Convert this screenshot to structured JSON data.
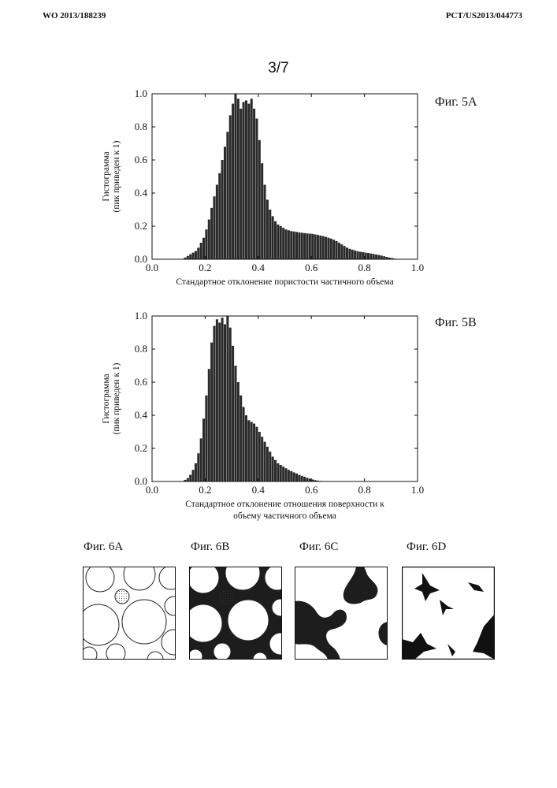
{
  "header": {
    "left": "WO 2013/188239",
    "right": "PCT/US2013/044773"
  },
  "page_number": "3/7",
  "colors": {
    "bar": "#2a2a2a",
    "axis": "#111111",
    "background": "#ffffff"
  },
  "chart_data": [
    {
      "id": "fig5a",
      "type": "bar",
      "title": "Фиг. 5A",
      "xlabel": "Стандартное отклонение пористости частичного объема",
      "xlabel_lines": [
        "Стандартное отклонение пористости частичного объема"
      ],
      "ylabel_lines": [
        "Гистограмма",
        "(пик приведен к 1)"
      ],
      "xlim": [
        0,
        1
      ],
      "ylim": [
        0,
        1
      ],
      "xticks": [
        "0.0",
        "0.2",
        "0.4",
        "0.6",
        "0.8",
        "1.0"
      ],
      "yticks": [
        "0.0",
        "0.2",
        "0.4",
        "0.6",
        "0.8",
        "1.0"
      ],
      "bin_width": 0.01,
      "x": [
        0.005,
        0.015,
        0.025,
        0.035,
        0.045,
        0.055,
        0.065,
        0.075,
        0.085,
        0.095,
        0.105,
        0.115,
        0.125,
        0.135,
        0.145,
        0.155,
        0.165,
        0.175,
        0.185,
        0.195,
        0.205,
        0.215,
        0.225,
        0.235,
        0.245,
        0.255,
        0.265,
        0.275,
        0.285,
        0.295,
        0.305,
        0.315,
        0.325,
        0.335,
        0.345,
        0.355,
        0.365,
        0.375,
        0.385,
        0.395,
        0.405,
        0.415,
        0.425,
        0.435,
        0.445,
        0.455,
        0.465,
        0.475,
        0.485,
        0.495,
        0.505,
        0.515,
        0.525,
        0.535,
        0.545,
        0.555,
        0.565,
        0.575,
        0.585,
        0.595,
        0.605,
        0.615,
        0.625,
        0.635,
        0.645,
        0.655,
        0.665,
        0.675,
        0.685,
        0.695,
        0.705,
        0.715,
        0.725,
        0.735,
        0.745,
        0.755,
        0.765,
        0.775,
        0.785,
        0.795,
        0.805,
        0.815,
        0.825,
        0.835,
        0.845,
        0.855,
        0.865,
        0.875,
        0.885,
        0.895,
        0.905,
        0.915,
        0.925,
        0.935,
        0.945,
        0.955,
        0.965,
        0.975,
        0.985,
        0.995
      ],
      "values": [
        0,
        0,
        0,
        0,
        0,
        0,
        0,
        0,
        0,
        0,
        0,
        0,
        0.01,
        0.02,
        0.03,
        0.04,
        0.05,
        0.07,
        0.1,
        0.13,
        0.18,
        0.24,
        0.31,
        0.38,
        0.45,
        0.52,
        0.6,
        0.68,
        0.77,
        0.87,
        0.94,
        1.0,
        0.97,
        0.91,
        0.95,
        0.96,
        0.94,
        0.97,
        0.91,
        0.85,
        0.72,
        0.58,
        0.45,
        0.36,
        0.3,
        0.26,
        0.23,
        0.21,
        0.2,
        0.19,
        0.18,
        0.175,
        0.17,
        0.168,
        0.165,
        0.162,
        0.16,
        0.158,
        0.156,
        0.155,
        0.153,
        0.15,
        0.147,
        0.143,
        0.14,
        0.135,
        0.13,
        0.125,
        0.118,
        0.11,
        0.1,
        0.09,
        0.08,
        0.07,
        0.063,
        0.058,
        0.053,
        0.048,
        0.045,
        0.043,
        0.04,
        0.038,
        0.035,
        0.032,
        0.029,
        0.026,
        0.022,
        0.018,
        0.014,
        0.01,
        0.007,
        0.004,
        0.002,
        0,
        0,
        0,
        0,
        0,
        0,
        0
      ]
    },
    {
      "id": "fig5b",
      "type": "bar",
      "title": "Фиг. 5B",
      "xlabel": "Стандартное отклонение отношения поверхности к объему частичного объема",
      "xlabel_lines": [
        "Стандартное отклонение отношения поверхности к",
        "объему частичного объема"
      ],
      "ylabel_lines": [
        "Гистограмма",
        "(пик приведен к 1)"
      ],
      "xlim": [
        0,
        1
      ],
      "ylim": [
        0,
        1
      ],
      "xticks": [
        "0.0",
        "0.2",
        "0.4",
        "0.6",
        "0.8",
        "1.0"
      ],
      "yticks": [
        "0.0",
        "0.2",
        "0.4",
        "0.6",
        "0.8",
        "1.0"
      ],
      "bin_width": 0.01,
      "x": [
        0.005,
        0.015,
        0.025,
        0.035,
        0.045,
        0.055,
        0.065,
        0.075,
        0.085,
        0.095,
        0.105,
        0.115,
        0.125,
        0.135,
        0.145,
        0.155,
        0.165,
        0.175,
        0.185,
        0.195,
        0.205,
        0.215,
        0.225,
        0.235,
        0.245,
        0.255,
        0.265,
        0.275,
        0.285,
        0.295,
        0.305,
        0.315,
        0.325,
        0.335,
        0.345,
        0.355,
        0.365,
        0.375,
        0.385,
        0.395,
        0.405,
        0.415,
        0.425,
        0.435,
        0.445,
        0.455,
        0.465,
        0.475,
        0.485,
        0.495,
        0.505,
        0.515,
        0.525,
        0.535,
        0.545,
        0.555,
        0.565,
        0.575,
        0.585,
        0.595,
        0.605,
        0.615,
        0.625,
        0.635,
        0.645,
        0.655,
        0.665,
        0.675,
        0.685,
        0.695,
        0.705,
        0.715,
        0.725,
        0.735,
        0.745,
        0.755,
        0.765,
        0.775,
        0.785,
        0.795,
        0.805,
        0.815,
        0.825,
        0.835,
        0.845,
        0.855,
        0.865,
        0.875,
        0.885,
        0.895,
        0.905,
        0.915,
        0.925,
        0.935,
        0.945,
        0.955,
        0.965,
        0.975,
        0.985,
        0.995
      ],
      "values": [
        0,
        0,
        0,
        0,
        0,
        0,
        0,
        0,
        0,
        0,
        0,
        0,
        0.01,
        0.02,
        0.04,
        0.07,
        0.11,
        0.17,
        0.26,
        0.38,
        0.52,
        0.68,
        0.84,
        0.94,
        0.98,
        0.96,
        0.99,
        0.95,
        1.0,
        0.93,
        0.82,
        0.7,
        0.6,
        0.52,
        0.45,
        0.4,
        0.37,
        0.36,
        0.35,
        0.33,
        0.3,
        0.27,
        0.24,
        0.21,
        0.18,
        0.15,
        0.13,
        0.11,
        0.1,
        0.09,
        0.08,
        0.07,
        0.062,
        0.055,
        0.048,
        0.04,
        0.034,
        0.028,
        0.022,
        0.017,
        0.012,
        0.008,
        0.005,
        0.003,
        0,
        0,
        0,
        0,
        0,
        0,
        0,
        0,
        0,
        0,
        0,
        0,
        0,
        0,
        0,
        0,
        0,
        0,
        0,
        0,
        0,
        0,
        0,
        0,
        0,
        0,
        0,
        0,
        0,
        0,
        0,
        0,
        0,
        0,
        0,
        0
      ]
    }
  ],
  "fig6": {
    "panels": [
      {
        "label": "Фиг. 6A",
        "fill_pore_space": false,
        "show_circles": true,
        "hatched_grain": true
      },
      {
        "label": "Фиг. 6B",
        "fill_pore_space": true,
        "show_circles": true,
        "hatched_grain": true
      },
      {
        "label": "Фиг. 6C",
        "fill_pore_space": true,
        "show_circles": false,
        "hatched_grain": false
      },
      {
        "label": "Фиг. 6D",
        "fill_pore_space": true,
        "show_circles": false,
        "hatched_grain": false
      }
    ]
  }
}
